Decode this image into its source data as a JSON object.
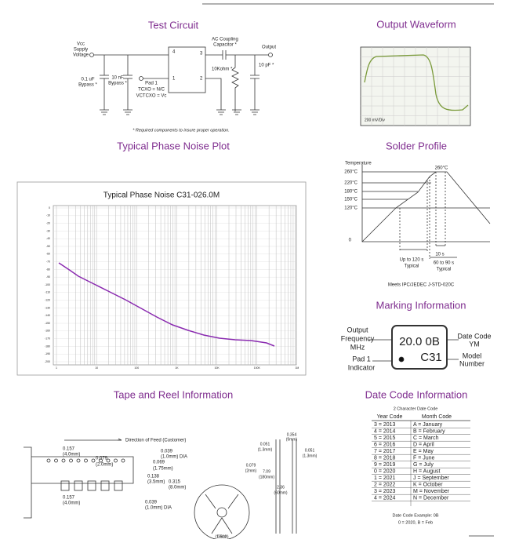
{
  "test_circuit": {
    "title": "Test Circuit",
    "vcc": [
      "Vcc",
      "Supply",
      "Voltage"
    ],
    "cap1": [
      "0.1 uF",
      "Bypass *"
    ],
    "cap2": [
      "10 nF",
      "Bypass *"
    ],
    "pad1": [
      "Pad 1",
      "TCXO = N/C",
      "VCTCXO = Vc"
    ],
    "pins": [
      "4",
      "1",
      "3",
      "2"
    ],
    "ac": [
      "AC Coupling",
      "Capacitor *"
    ],
    "output": "Output",
    "resistor": "10Kohm *",
    "load": "10 pF *",
    "note": "* Required components to insure proper operation."
  },
  "output_waveform": {
    "title": "Output Waveform",
    "scale": "200 mV/Div"
  },
  "phase_noise": {
    "title": "Typical Phase Noise Plot",
    "plot_title": "Typical Phase Noise C31-026.0M",
    "yticks": [
      "0",
      "-10",
      "-20",
      "-30",
      "-40",
      "-50",
      "-60",
      "-70",
      "-80",
      "-90",
      "-100",
      "-110",
      "-120",
      "-130",
      "-140",
      "-150",
      "-160",
      "-170",
      "-180",
      "-190",
      "-200"
    ],
    "xticks": [
      "1",
      "10",
      "100",
      "1K",
      "10K",
      "100K",
      "1M"
    ]
  },
  "solder_profile": {
    "title": "Solder Profile",
    "axis": "Temperature",
    "temps": [
      "260°C",
      "220°C",
      "180°C",
      "150°C",
      "120°C",
      "0"
    ],
    "peak": "260°C",
    "preheat": [
      "Up to 120 s",
      "Typical"
    ],
    "peak_time": "10 s",
    "reflow": [
      "60 to 90 s",
      "Typical"
    ],
    "note": "Meets IPC/JEDEC J-STD-020C"
  },
  "marking": {
    "title": "Marking Information",
    "freq": [
      "Output",
      "Frequency",
      "MHz"
    ],
    "pad": [
      "Pad 1",
      "Indicator"
    ],
    "line1": "20.0 0B",
    "line2": "C31",
    "date": [
      "Date Code",
      "YM"
    ],
    "model": [
      "Model",
      "Number"
    ]
  },
  "tape_reel": {
    "title": "Tape and Reel Information",
    "feed": "Direction of Feed (Customer)",
    "dims": [
      "0.157",
      "(4.0mm)",
      "0.079",
      "(2.0mm)",
      "0.039",
      "(1.0mm) DIA",
      "0.069",
      "(1.75mm)",
      "0.138",
      "(3.5mm)",
      "0.315",
      "(8.0mm)",
      "0.157",
      "(4.0mm)",
      "0.039",
      "(1.0mm) DIA"
    ],
    "reel": [
      "0.079",
      "(2mm)",
      "7.09",
      "(180mm)",
      "2.36",
      "(60mm)",
      "0.512",
      "(13mm)",
      "0.051",
      "(1.3mm)",
      "0.354",
      "(9mm)",
      "0.051",
      "(1.3mm)"
    ]
  },
  "date_code": {
    "title": "Date Code Information",
    "caption": "2 Character Date Code",
    "header": [
      "Year Code",
      "Month Code"
    ],
    "rows": [
      [
        "3 = 2013",
        "A = January"
      ],
      [
        "4 = 2014",
        "B = February"
      ],
      [
        "5 = 2015",
        "C = March"
      ],
      [
        "6 = 2016",
        "D = April"
      ],
      [
        "7 = 2017",
        "E = May"
      ],
      [
        "8 = 2018",
        "F = June"
      ],
      [
        "9 = 2019",
        "G = July"
      ],
      [
        "0 = 2020",
        "H = August"
      ],
      [
        "1 = 2021",
        "J = September"
      ],
      [
        "2 = 2022",
        "K = October"
      ],
      [
        "3 = 2023",
        "M = November"
      ],
      [
        "4 = 2024",
        "N = December"
      ]
    ],
    "example": [
      "Date Code Example: 0B",
      "0 = 2020, B = Feb"
    ]
  }
}
